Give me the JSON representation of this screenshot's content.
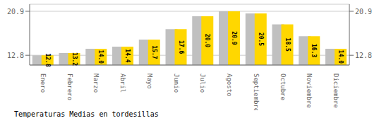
{
  "chart_data": {
    "type": "bar",
    "title": "Temperaturas Medias en tordesillas",
    "categories": [
      "Enero",
      "Febrero",
      "Marzo",
      "Abril",
      "Mayo",
      "Junio",
      "Julio",
      "Agosto",
      "Septiembre",
      "Octubre",
      "Noviembre",
      "Diciembre"
    ],
    "series": [
      {
        "color": "#C0C0C0",
        "values": [
          12.8,
          13.2,
          14.0,
          14.4,
          15.7,
          17.6,
          20.0,
          20.9,
          20.5,
          18.5,
          16.3,
          14.0
        ]
      },
      {
        "color": "#FFD700",
        "values": [
          12.8,
          13.2,
          14.0,
          14.4,
          15.7,
          17.6,
          20.0,
          20.9,
          20.5,
          18.5,
          16.3,
          14.0
        ],
        "value_labels": [
          "12.8",
          "13.2",
          "14.0",
          "14.4",
          "15.7",
          "17.6",
          "20.0",
          "20.9",
          "20.5",
          "18.5",
          "16.3",
          "14.0"
        ]
      }
    ],
    "ylim": [
      11.0,
      22.2
    ],
    "yticks": [
      12.8,
      20.9
    ],
    "y2lim": [
      11.0,
      22.2
    ],
    "y2ticks": [
      12.8,
      20.9
    ],
    "grid": true,
    "data_labels": true
  }
}
